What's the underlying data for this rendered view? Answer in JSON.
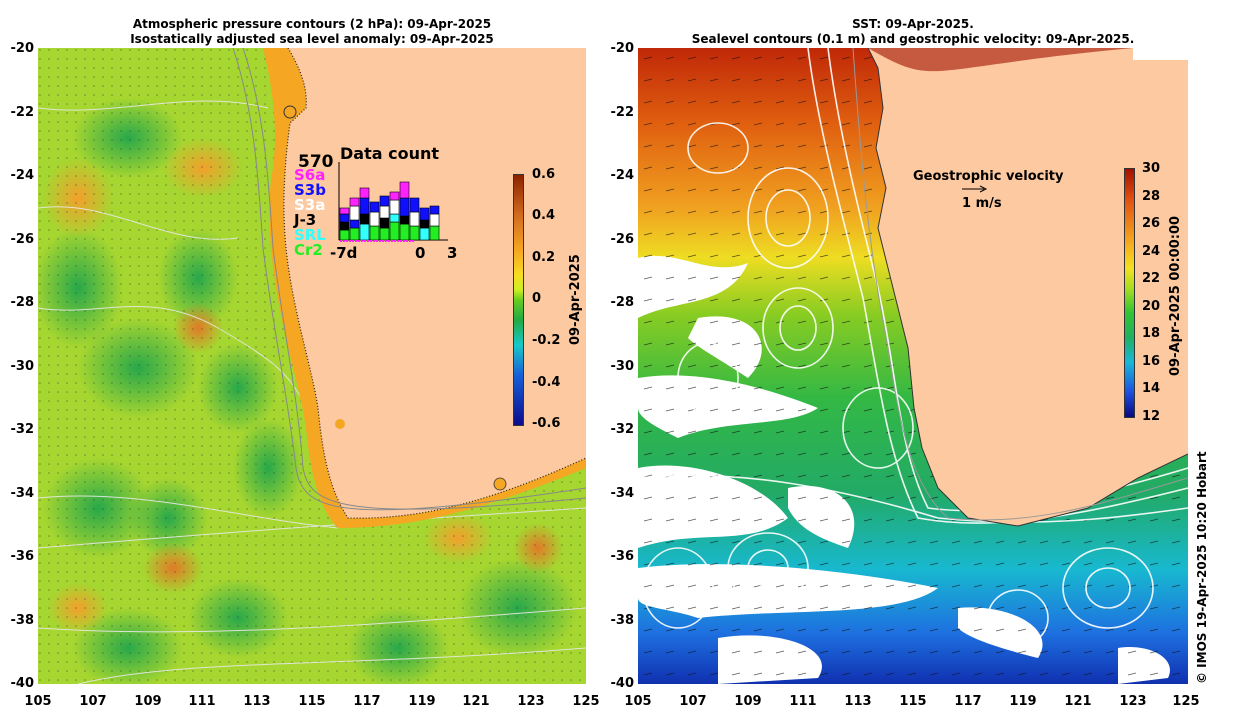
{
  "left_panel": {
    "title_line1": "Atmospheric pressure contours (2 hPa): 09-Apr-2025",
    "title_line2": "Isostatically adjusted sea level anomaly: 09-Apr-2025",
    "y_ticks": [
      "-20",
      "-22",
      "-24",
      "-26",
      "-28",
      "-30",
      "-32",
      "-34",
      "-36",
      "-38",
      "-40"
    ],
    "x_ticks": [
      "105",
      "107",
      "109",
      "111",
      "113",
      "115",
      "117",
      "119",
      "121",
      "123",
      "125"
    ],
    "colorbar_ticks": [
      "0.6",
      "0.4",
      "0.2",
      "0",
      "-0.2",
      "-0.4",
      "-0.6"
    ],
    "colorbar_label": "09-Apr-2025",
    "inset": {
      "count": "570",
      "title": "Data count",
      "satellites": [
        {
          "name": "S6a",
          "color": "#ff22ff"
        },
        {
          "name": "S3b",
          "color": "#1010ff"
        },
        {
          "name": "S3a",
          "color": "#ffffff"
        },
        {
          "name": "J-3",
          "color": "#000000"
        },
        {
          "name": "SRL",
          "color": "#33ffff"
        },
        {
          "name": "Cr2",
          "color": "#22ee22"
        }
      ],
      "axis_left": "-7d",
      "axis_mid": "0",
      "axis_right": "3"
    }
  },
  "right_panel": {
    "title_line1": "SST: 09-Apr-2025.",
    "title_line2": "Sealevel contours (0.1 m) and geostrophic velocity: 09-Apr-2025.",
    "y_ticks": [
      "-20",
      "-22",
      "-24",
      "-26",
      "-28",
      "-30",
      "-32",
      "-34",
      "-36",
      "-38",
      "-40"
    ],
    "x_ticks": [
      "105",
      "107",
      "109",
      "111",
      "113",
      "115",
      "117",
      "119",
      "121",
      "123",
      "125"
    ],
    "colorbar_ticks": [
      "30",
      "28",
      "26",
      "24",
      "22",
      "20",
      "18",
      "16",
      "14",
      "12"
    ],
    "colorbar_label": "09-Apr-2025 00:00:00",
    "velocity_title": "Geostrophic velocity",
    "velocity_scale": "1 m/s"
  },
  "credit": "© IMOS 19-Apr-2025 10:20 Hobart",
  "colors": {
    "land": "#fcc9a0",
    "sla_gradient": [
      "#0c0c8c",
      "#1760d8",
      "#18c8c8",
      "#22aa44",
      "#66cc22",
      "#ccee22",
      "#f7dd22",
      "#f5a623",
      "#d26a1e",
      "#8b2200"
    ],
    "sst_gradient": [
      "#0a0a80",
      "#1e50e0",
      "#18b8d8",
      "#22b060",
      "#33c433",
      "#aadd22",
      "#f5e020",
      "#f5a020",
      "#e05010",
      "#a01000"
    ]
  }
}
